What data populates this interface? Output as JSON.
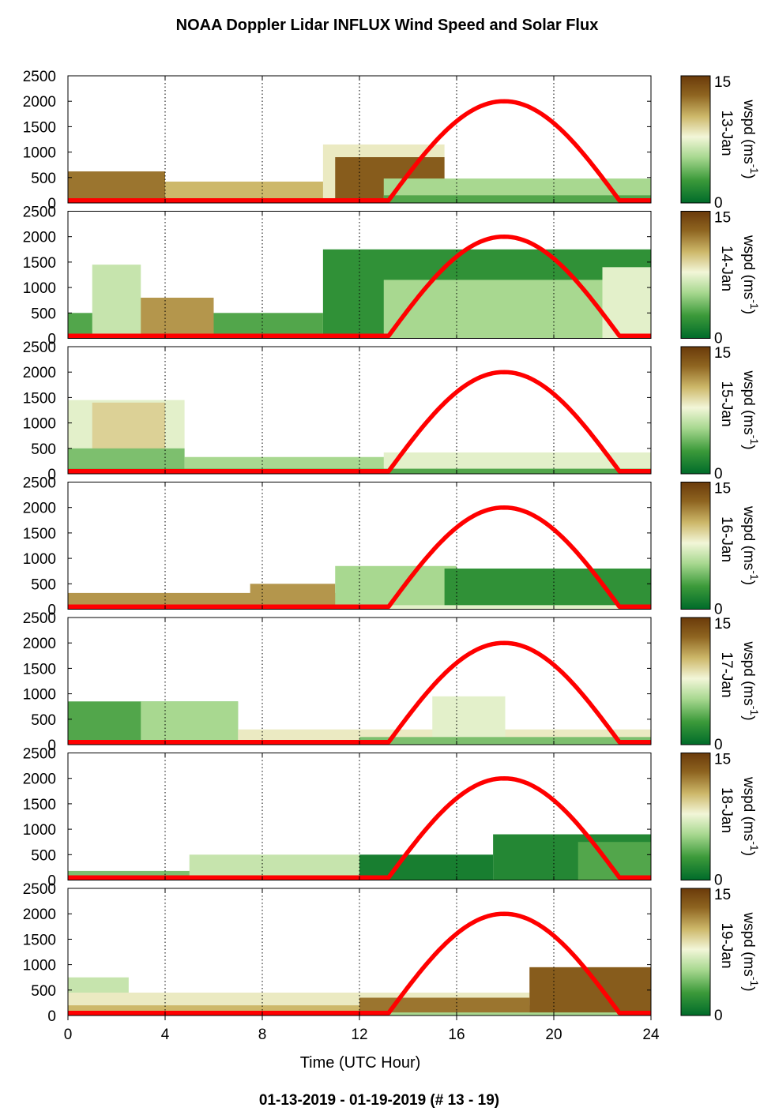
{
  "title": "NOAA Doppler Lidar INFLUX Wind Speed and Solar Flux",
  "footer": "01-13-2019 - 01-19-2019   (# 13 - 19)",
  "colors": {
    "solar_curve": "#ff0000",
    "colormap": [
      "#006b2a",
      "#3c9a3a",
      "#a8d890",
      "#f2f6d8",
      "#cdb86a",
      "#8e6420",
      "#6a3a0a"
    ]
  },
  "chart_data": {
    "type": "heatmap",
    "xlabel": "Time (UTC Hour)",
    "xlim": [
      0,
      24
    ],
    "x_ticks": [
      "0",
      "4",
      "8",
      "12",
      "16",
      "20",
      "24"
    ],
    "ylim": [
      0,
      2500
    ],
    "y_ticks": [
      "0",
      "500",
      "1000",
      "1500",
      "2000",
      "2500"
    ],
    "grid": "dotted vertical lines at 4, 8, 12, 16, 20, 24",
    "colorbar": {
      "label": "wspd (ms",
      "sup": "-1",
      "close": ")",
      "min_label": "0",
      "max_label": "15",
      "range": [
        0,
        15
      ]
    },
    "solar_flux": {
      "sunrise_hour": 13.2,
      "noon_hour": 17.9,
      "sunset_hour": 22.7,
      "peak_on_height_axis": 2000,
      "baseline_on_height_axis": 50
    },
    "panels": [
      {
        "date": "13-Jan",
        "layers": [
          {
            "x0": 0,
            "x1": 13,
            "top": 420,
            "speed": 10
          },
          {
            "x0": 0,
            "x1": 4,
            "top": 620,
            "speed": 12
          },
          {
            "x0": 10.5,
            "x1": 15.5,
            "top": 1150,
            "speed": 8
          },
          {
            "x0": 11,
            "x1": 15.5,
            "top": 900,
            "speed": 13
          },
          {
            "x0": 13,
            "x1": 24,
            "top": 480,
            "speed": 5
          },
          {
            "x0": 13,
            "x1": 24,
            "top": 150,
            "speed": 3
          }
        ]
      },
      {
        "date": "14-Jan",
        "layers": [
          {
            "x0": 0,
            "x1": 10.5,
            "top": 500,
            "speed": 3
          },
          {
            "x0": 1.5,
            "x1": 6,
            "top": 800,
            "speed": 11
          },
          {
            "x0": 1,
            "x1": 3,
            "top": 1450,
            "speed": 6
          },
          {
            "x0": 10.5,
            "x1": 24,
            "top": 1750,
            "speed": 2
          },
          {
            "x0": 13,
            "x1": 22,
            "top": 1150,
            "speed": 5
          },
          {
            "x0": 22,
            "x1": 24,
            "top": 1400,
            "speed": 7
          }
        ]
      },
      {
        "date": "15-Jan",
        "layers": [
          {
            "x0": 0,
            "x1": 4.8,
            "top": 1450,
            "speed": 7
          },
          {
            "x0": 1,
            "x1": 4,
            "top": 1400,
            "speed": 9
          },
          {
            "x0": 0,
            "x1": 4.8,
            "top": 500,
            "speed": 4
          },
          {
            "x0": 4.8,
            "x1": 24,
            "top": 330,
            "speed": 5
          },
          {
            "x0": 13,
            "x1": 24,
            "top": 420,
            "speed": 7
          },
          {
            "x0": 0,
            "x1": 24,
            "top": 100,
            "speed": 3
          }
        ]
      },
      {
        "date": "16-Jan",
        "layers": [
          {
            "x0": 0,
            "x1": 12,
            "top": 320,
            "speed": 11
          },
          {
            "x0": 7.5,
            "x1": 11,
            "top": 500,
            "speed": 11
          },
          {
            "x0": 11,
            "x1": 16,
            "top": 850,
            "speed": 5
          },
          {
            "x0": 15.5,
            "x1": 24,
            "top": 800,
            "speed": 2
          },
          {
            "x0": 0,
            "x1": 24,
            "top": 80,
            "speed": 7
          }
        ]
      },
      {
        "date": "17-Jan",
        "layers": [
          {
            "x0": 0,
            "x1": 7,
            "top": 850,
            "speed": 3
          },
          {
            "x0": 3,
            "x1": 7,
            "top": 850,
            "speed": 5
          },
          {
            "x0": 7,
            "x1": 24,
            "top": 300,
            "speed": 8
          },
          {
            "x0": 15,
            "x1": 18,
            "top": 950,
            "speed": 7
          },
          {
            "x0": 12,
            "x1": 24,
            "top": 150,
            "speed": 4
          }
        ]
      },
      {
        "date": "18-Jan",
        "layers": [
          {
            "x0": 0,
            "x1": 12,
            "top": 180,
            "speed": 4
          },
          {
            "x0": 5,
            "x1": 12,
            "top": 500,
            "speed": 6
          },
          {
            "x0": 12,
            "x1": 17.5,
            "top": 500,
            "speed": 1
          },
          {
            "x0": 17.5,
            "x1": 24,
            "top": 900,
            "speed": 1.5
          },
          {
            "x0": 21,
            "x1": 24,
            "top": 750,
            "speed": 3
          }
        ]
      },
      {
        "date": "19-Jan",
        "layers": [
          {
            "x0": 0,
            "x1": 2.5,
            "top": 750,
            "speed": 6
          },
          {
            "x0": 0,
            "x1": 24,
            "top": 450,
            "speed": 8
          },
          {
            "x0": 0,
            "x1": 24,
            "top": 200,
            "speed": 10
          },
          {
            "x0": 12,
            "x1": 19,
            "top": 350,
            "speed": 12
          },
          {
            "x0": 19,
            "x1": 24,
            "top": 950,
            "speed": 13
          },
          {
            "x0": 0,
            "x1": 24,
            "top": 60,
            "speed": 5
          }
        ]
      }
    ]
  }
}
